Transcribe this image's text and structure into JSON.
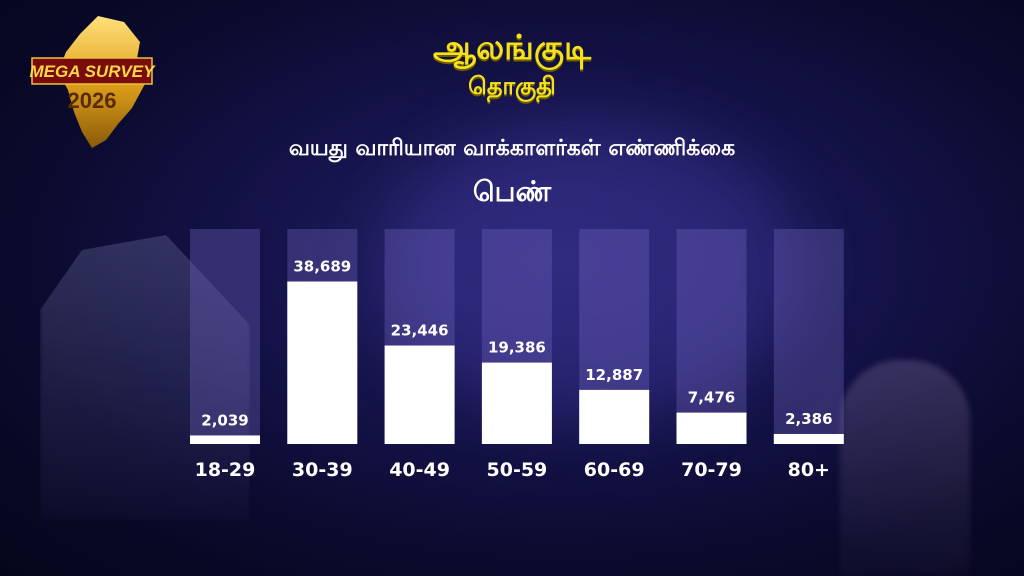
{
  "header": {
    "constituency": "ஆலங்குடி",
    "constituency_label": "தொகுதி",
    "chart_heading": "வயது வாரியான வாக்காளர்கள் எண்ணிக்கை",
    "gender": "பெண்"
  },
  "logo": {
    "line1": "MEGA SURVEY",
    "line2": "2026",
    "icon": "tamil-nadu-map-icon"
  },
  "colors": {
    "title": "#f6e21a",
    "bar_fill": "#ffffff",
    "bar_track": "rgba(120,110,200,0.32)",
    "background": "#15134a"
  },
  "chart_data": {
    "type": "bar",
    "categories": [
      "18-29",
      "30-39",
      "40-49",
      "50-59",
      "60-69",
      "70-79",
      "80+"
    ],
    "values": [
      2039,
      38689,
      23446,
      19386,
      12887,
      7476,
      2386
    ],
    "value_labels": [
      "2,039",
      "38,689",
      "23,446",
      "19,386",
      "12,887",
      "7,476",
      "2,386"
    ],
    "ylim": [
      0,
      40000
    ],
    "grid": false,
    "legend": "none"
  }
}
